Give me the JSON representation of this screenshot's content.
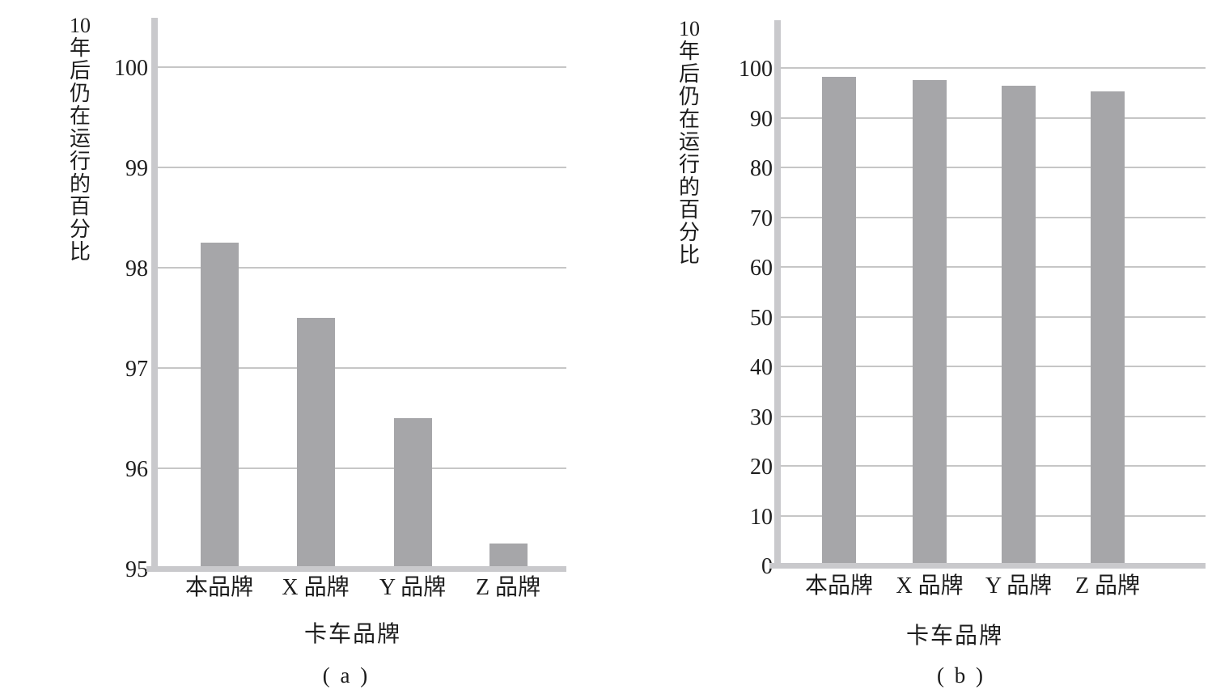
{
  "figure": {
    "background": "#ffffff",
    "text_color": "#1c1c1c"
  },
  "chart_data": [
    {
      "type": "bar",
      "panel_caption": "( a )",
      "title": "",
      "categories": [
        "本品牌",
        "X 品牌",
        "Y 品牌",
        "Z 品牌"
      ],
      "values": [
        98.25,
        97.5,
        96.5,
        95.25
      ],
      "ylabel": "10年后仍在运行的百分比",
      "xlabel": "卡车品牌",
      "ylim": [
        95,
        100
      ],
      "yticks": [
        95,
        96,
        97,
        98,
        99,
        100
      ],
      "grid": true,
      "legend": false,
      "bar_color": "#a6a6a9",
      "axis_color": "#c9c9cc",
      "grid_color": "#c6c6c6"
    },
    {
      "type": "bar",
      "panel_caption": "( b )",
      "title": "",
      "categories": [
        "本品牌",
        "X 品牌",
        "Y 品牌",
        "Z 品牌"
      ],
      "values": [
        98.25,
        97.5,
        96.5,
        95.25
      ],
      "ylabel": "10年后仍在运行的百分比",
      "xlabel": "卡车品牌",
      "ylim": [
        0,
        100
      ],
      "yticks": [
        0,
        10,
        20,
        30,
        40,
        50,
        60,
        70,
        80,
        90,
        100
      ],
      "grid": true,
      "legend": false,
      "bar_color": "#a6a6a9",
      "axis_color": "#c9c9cc",
      "grid_color": "#c6c6c6"
    }
  ]
}
